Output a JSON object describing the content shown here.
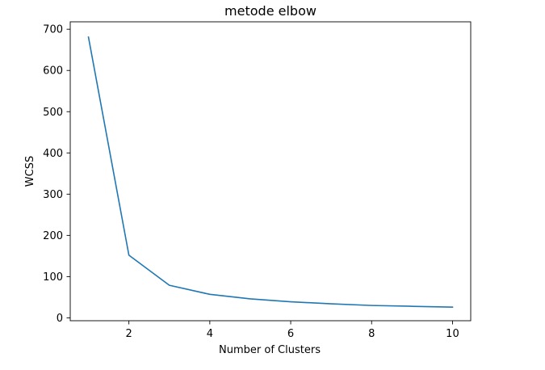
{
  "chart_data": {
    "type": "line",
    "title": "metode elbow",
    "xlabel": "Number of Clusters",
    "ylabel": "WCSS",
    "xlim": [
      0.55,
      10.45
    ],
    "ylim": [
      -7,
      718
    ],
    "xticks": [
      2,
      4,
      6,
      8,
      10
    ],
    "yticks": [
      0,
      100,
      200,
      300,
      400,
      500,
      600,
      700
    ],
    "grid": false,
    "series": [
      {
        "name": "WCSS",
        "color": "#1f77b4",
        "x": [
          1,
          2,
          3,
          4,
          5,
          6,
          7,
          8,
          9,
          10
        ],
        "y": [
          681,
          152,
          79,
          57,
          46,
          39,
          34,
          30,
          28,
          26
        ]
      }
    ]
  }
}
